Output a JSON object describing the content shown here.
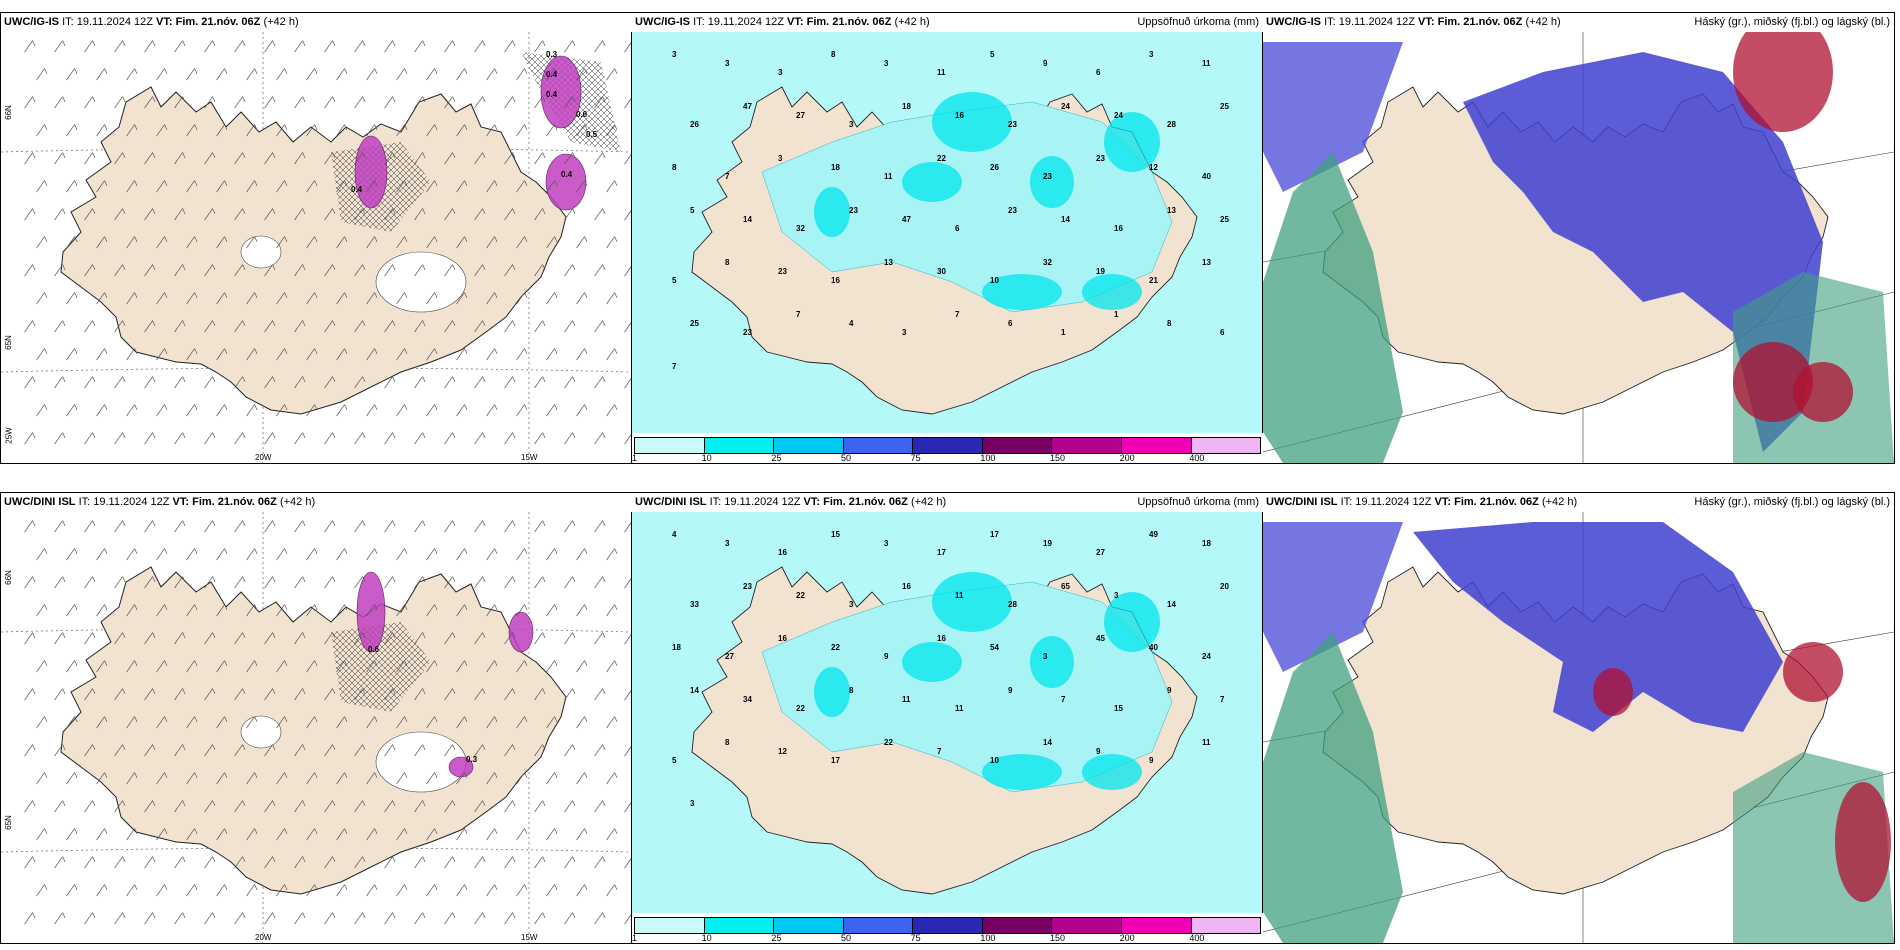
{
  "it_label": "IT: 19.11.2024 12Z",
  "vt_prefix": "VT:",
  "vt_value": "Fim. 21.nóv. 06Z",
  "lead": "(+42 h)",
  "rows": [
    {
      "model": "UWC/IG-IS"
    },
    {
      "model": "UWC/DINI ISL"
    }
  ],
  "precip_title": "Uppsöfnuð úrkoma (mm)",
  "cloud_title": "Háský (gr.), miðský (fj.bl.) og lágský (bl.)",
  "colorbar": {
    "colors": [
      "#c8fafa",
      "#00f0f0",
      "#00c8f0",
      "#3c64f0",
      "#2828b4",
      "#780064",
      "#b4008c",
      "#f000b4",
      "#f0b4f0"
    ],
    "labels": [
      "1",
      "10",
      "25",
      "50",
      "75",
      "100",
      "150",
      "200",
      "400"
    ]
  },
  "axes": {
    "lon_20": "20W",
    "lon_15": "15W",
    "lat_66": "66N",
    "lat_65": "65N",
    "lat_25": "25W"
  },
  "precip_values_top": [
    "3",
    "3",
    "3",
    "8",
    "3",
    "11",
    "5",
    "9",
    "6",
    "3",
    "11",
    "26",
    "47",
    "27",
    "3",
    "18",
    "16",
    "23",
    "24",
    "24",
    "28",
    "25",
    "8",
    "7",
    "3",
    "18",
    "11",
    "22",
    "26",
    "23",
    "23",
    "12",
    "40",
    "5",
    "14",
    "32",
    "23",
    "47",
    "6",
    "23",
    "14",
    "16",
    "13",
    "25",
    "5",
    "8",
    "23",
    "16",
    "13",
    "30",
    "10",
    "32",
    "19",
    "21",
    "13",
    "25",
    "23",
    "7",
    "4",
    "3",
    "7",
    "6",
    "1",
    "1",
    "8",
    "6",
    "7"
  ],
  "precip_values_bottom": [
    "4",
    "3",
    "16",
    "15",
    "3",
    "17",
    "17",
    "19",
    "27",
    "49",
    "18",
    "33",
    "23",
    "22",
    "3",
    "16",
    "11",
    "28",
    "65",
    "3",
    "14",
    "20",
    "18",
    "27",
    "16",
    "22",
    "9",
    "16",
    "54",
    "3",
    "45",
    "40",
    "24",
    "14",
    "34",
    "22",
    "8",
    "11",
    "11",
    "9",
    "7",
    "15",
    "9",
    "7",
    "5",
    "8",
    "12",
    "17",
    "22",
    "7",
    "10",
    "14",
    "9",
    "9",
    "11",
    "3"
  ],
  "wind_labels_top": [
    "0.3",
    "0.4",
    "0.4",
    "0.6",
    "0.5",
    "0.4",
    "0.4"
  ],
  "wind_labels_bottom": [
    "0.6",
    "0.3"
  ]
}
